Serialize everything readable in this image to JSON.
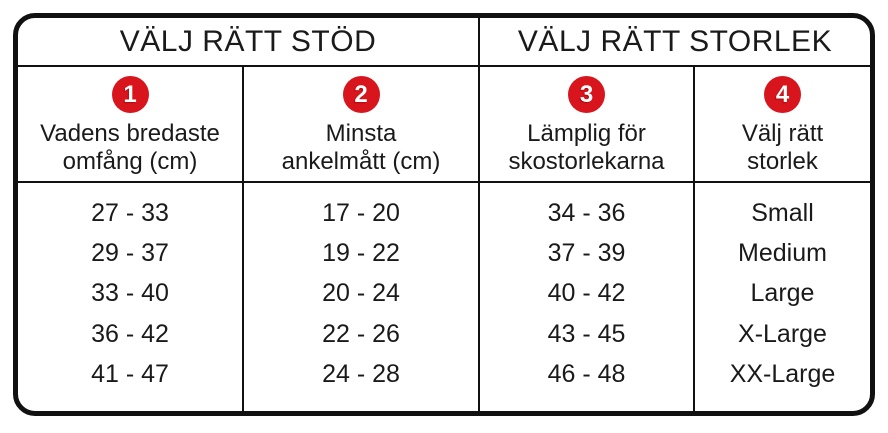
{
  "colors": {
    "accent_red": "#d8141c",
    "line_black": "#111111",
    "text": "#1a1a1a",
    "background": "#ffffff"
  },
  "header_groups": [
    {
      "label": "VÄLJ RÄTT STÖD"
    },
    {
      "label": "VÄLJ RÄTT STORLEK"
    }
  ],
  "columns": [
    {
      "number": "1",
      "label_line1": "Vadens bredaste",
      "label_line2": "omfång (cm)"
    },
    {
      "number": "2",
      "label_line1": "Minsta",
      "label_line2": "ankelmått (cm)"
    },
    {
      "number": "3",
      "label_line1": "Lämplig för",
      "label_line2": "skostorlekarna"
    },
    {
      "number": "4",
      "label_line1": "Välj rätt",
      "label_line2": "storlek"
    }
  ],
  "chart_data": {
    "type": "table",
    "title": "",
    "column_groups": [
      {
        "label": "VÄLJ RÄTT STÖD",
        "span": 2
      },
      {
        "label": "VÄLJ RÄTT STORLEK",
        "span": 2
      }
    ],
    "columns": [
      "Vadens bredaste omfång (cm)",
      "Minsta ankelmått (cm)",
      "Lämplig för skostorlekarna",
      "Välj rätt storlek"
    ],
    "rows": [
      [
        "27 - 33",
        "17 - 20",
        "34 - 36",
        "Small"
      ],
      [
        "29 - 37",
        "19 - 22",
        "37 - 39",
        "Medium"
      ],
      [
        "33 - 40",
        "20 - 24",
        "40 - 42",
        "Large"
      ],
      [
        "36 - 42",
        "22 - 26",
        "43 - 45",
        "X-Large"
      ],
      [
        "41 - 47",
        "24 - 28",
        "46 - 48",
        "XX-Large"
      ]
    ]
  }
}
